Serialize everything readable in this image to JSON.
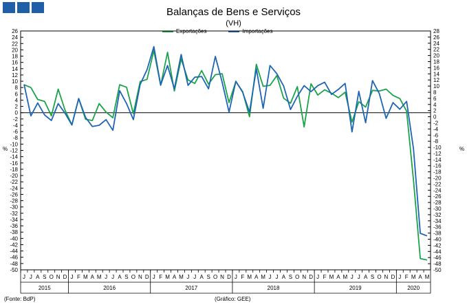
{
  "header": {
    "logo_icon": "gee-logo-blocks-icon",
    "title": "Balanças de Bens e Serviços",
    "subtitle": "(VH)"
  },
  "footer": {
    "source_left": "(Fonte: BdP)",
    "source_mid": "(Gráfico: GEE)"
  },
  "axis_unit_left": "%",
  "axis_unit_right": "%",
  "chart_data": {
    "type": "line",
    "title": "Balanças de Bens e Serviços",
    "subtitle": "(VH)",
    "ylim": [
      -50,
      26
    ],
    "ylim_right": [
      -50,
      28
    ],
    "y_ticks_left": [
      26,
      24,
      22,
      20,
      18,
      16,
      14,
      12,
      10,
      8,
      6,
      4,
      2,
      0,
      -2,
      -4,
      -6,
      -8,
      -10,
      -12,
      -14,
      -16,
      -18,
      -20,
      -22,
      -24,
      -26,
      -28,
      -30,
      -32,
      -34,
      -36,
      -38,
      -40,
      -42,
      -44,
      -46,
      -48,
      -50
    ],
    "y_ticks_right": [
      28,
      26,
      24,
      22,
      20,
      18,
      16,
      14,
      12,
      10,
      8,
      6,
      4,
      2,
      0,
      -2,
      -4,
      -6,
      -8,
      -10,
      -12,
      -14,
      -16,
      -18,
      -20,
      -22,
      -24,
      -26,
      -28,
      -30,
      -32,
      -34,
      -36,
      -38,
      -40,
      -42,
      -44,
      -46,
      -48,
      -50
    ],
    "grid": false,
    "legend_position": "top-center",
    "month_labels": [
      "J",
      "J",
      "A",
      "S",
      "O",
      "N",
      "D",
      "J",
      "F",
      "M",
      "A",
      "M",
      "J",
      "J",
      "A",
      "S",
      "O",
      "N",
      "D",
      "J",
      "F",
      "M",
      "A",
      "M",
      "J",
      "J",
      "A",
      "S",
      "O",
      "N",
      "D",
      "J",
      "F",
      "M",
      "A",
      "M",
      "J",
      "J",
      "A",
      "S",
      "O",
      "N",
      "D",
      "J",
      "F",
      "M",
      "A",
      "M",
      "J",
      "J",
      "A",
      "S",
      "O",
      "N",
      "D",
      "J",
      "F",
      "M",
      "A",
      "M"
    ],
    "years": [
      {
        "label": "2015",
        "start": 0,
        "count": 7
      },
      {
        "label": "2016",
        "start": 7,
        "count": 12
      },
      {
        "label": "2017",
        "start": 19,
        "count": 12
      },
      {
        "label": "2018",
        "start": 31,
        "count": 12
      },
      {
        "label": "2019",
        "start": 43,
        "count": 12
      },
      {
        "label": "2020",
        "start": 55,
        "count": 5
      }
    ],
    "series": [
      {
        "name": "Exportações",
        "color": "#1aa34a",
        "values": [
          8.9,
          8,
          4.2,
          3.6,
          -1,
          7.5,
          0.8,
          -3.9,
          4.5,
          -2.1,
          -2.5,
          2.9,
          0.2,
          -1.6,
          8.9,
          8.1,
          -0.3,
          9.9,
          10.6,
          19.8,
          8.7,
          19.2,
          6.9,
          17.1,
          10.4,
          9.3,
          13.4,
          9.1,
          12.1,
          12.4,
          3.2,
          9.9,
          6.7,
          -1.3,
          15.4,
          8.4,
          8.7,
          11.8,
          4.6,
          3,
          8.3,
          -4.5,
          9.2,
          5.6,
          7.3,
          6.2,
          4.8,
          6.5,
          -3,
          3.5,
          1.8,
          7.1,
          6.9,
          7.5,
          5.5,
          4.5,
          0.5,
          -21.5,
          -46.4,
          -46.9
        ]
      },
      {
        "name": "Importações",
        "color": "#1e64b4",
        "values": [
          9,
          -1,
          3.1,
          -0.7,
          -2.5,
          2.9,
          -0.2,
          -3.9,
          4.5,
          -1.5,
          -4.4,
          -4,
          -2.2,
          -5.6,
          7,
          2.9,
          -2.2,
          9,
          13.7,
          21,
          8.8,
          15,
          7.6,
          18.5,
          8.7,
          11.3,
          11.5,
          7.6,
          17.9,
          9.7,
          0.2,
          10,
          6.5,
          0.2,
          14,
          1.4,
          15,
          12.4,
          8.5,
          1,
          5.2,
          8.6,
          6.7,
          8.6,
          9.7,
          5.8,
          7.4,
          9.3,
          -6.1,
          6.8,
          -3.2,
          10.2,
          6.1,
          -1.8,
          3.2,
          1.1,
          3.6,
          -11.5,
          -38.4,
          -39.2
        ]
      }
    ]
  }
}
